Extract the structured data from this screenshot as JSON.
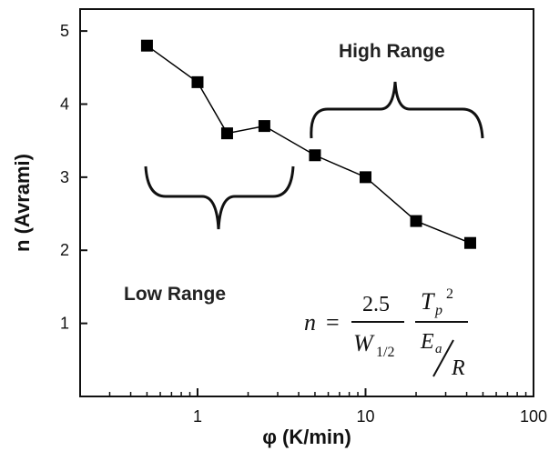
{
  "chart_data": {
    "type": "scatter",
    "x_scale": "log",
    "xlim": [
      0.2,
      100
    ],
    "ylim": [
      0,
      5.3
    ],
    "xticks": [
      1,
      10,
      100
    ],
    "yticks": [
      1,
      2,
      3,
      4,
      5
    ],
    "xlabel": "φ (K/min)",
    "ylabel": "n (Avrami)",
    "grid": false,
    "series": [
      {
        "x": [
          0.5,
          1,
          1.5,
          2.5,
          5,
          10,
          20,
          42
        ],
        "y": [
          4.8,
          4.3,
          3.6,
          3.7,
          3.3,
          3.0,
          2.4,
          2.1
        ],
        "marker": "square",
        "line": true,
        "color": "#000000"
      }
    ],
    "annotations": {
      "high_range": "High Range",
      "low_range": "Low Range"
    },
    "equation": {
      "lhs": "n",
      "eq": "=",
      "num1": "2.5",
      "den1_base": "W",
      "den1_sub": "1/2",
      "num2_base": "T",
      "num2_sub": "p",
      "num2_sup": "2",
      "den2_base": "E",
      "den2_sub": "a",
      "den2_over": "R"
    }
  }
}
